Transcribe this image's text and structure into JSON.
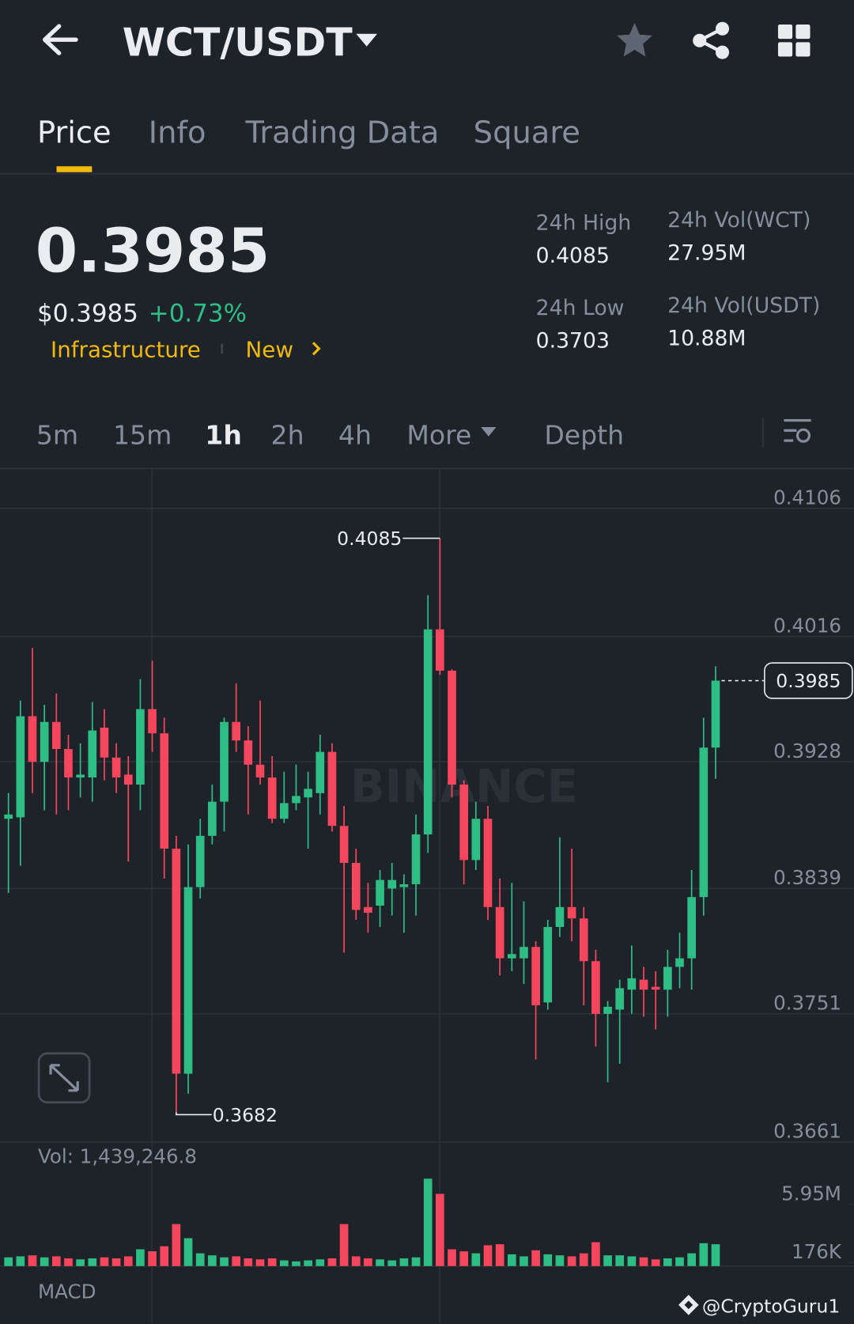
{
  "header": {
    "title": "WCT/USDT"
  },
  "tabs": [
    "Price",
    "Info",
    "Trading Data",
    "Square"
  ],
  "price": {
    "last": "0.3985",
    "usd": "$0.3985",
    "change": "+0.73%"
  },
  "tags": [
    "Infrastructure",
    "New"
  ],
  "stats": [
    {
      "label": "24h High",
      "value": "0.4085"
    },
    {
      "label": "24h Vol(WCT)",
      "value": "27.95M"
    },
    {
      "label": "24h Low",
      "value": "0.3703"
    },
    {
      "label": "24h Vol(USDT)",
      "value": "10.88M"
    }
  ],
  "intervals": [
    "5m",
    "15m",
    "1h",
    "2h",
    "4h",
    "More",
    "Depth"
  ],
  "watermark": "BINANCE",
  "footer": "@CryptoGuru1",
  "chart_data": {
    "type": "candlestick",
    "open": [
      0.3888,
      0.3889,
      0.396,
      0.3928,
      0.3956,
      0.3937,
      0.3917,
      0.3917,
      0.3952,
      0.3931,
      0.3919,
      0.3912,
      0.3965,
      0.3948,
      0.3867,
      0.3709,
      0.384,
      0.3876,
      0.39,
      0.3956,
      0.3943,
      0.3926,
      0.3917,
      0.3888,
      0.3899,
      0.3903,
      0.3906,
      0.3935,
      0.3883,
      0.3857,
      0.3826,
      0.3827,
      0.3839,
      0.384,
      0.3842,
      0.3877,
      0.4021,
      0.3992,
      0.3912,
      0.3859,
      0.3888,
      0.3826,
      0.379,
      0.379,
      0.3798,
      0.3759,
      0.3812,
      0.3826,
      0.3818,
      0.3788,
      0.3751,
      0.3754,
      0.3768,
      0.3775,
      0.377,
      0.3768,
      0.3784,
      0.379,
      0.3833,
      0.3938
    ],
    "high": [
      0.3906,
      0.3971,
      0.4008,
      0.3968,
      0.3976,
      0.3947,
      0.3941,
      0.397,
      0.3965,
      0.3941,
      0.3932,
      0.3986,
      0.3999,
      0.3959,
      0.3876,
      0.387,
      0.3888,
      0.3912,
      0.3959,
      0.3983,
      0.3953,
      0.3971,
      0.3932,
      0.3921,
      0.3926,
      0.3921,
      0.3947,
      0.3941,
      0.3897,
      0.3867,
      0.3843,
      0.3852,
      0.3857,
      0.3849,
      0.3891,
      0.4045,
      0.4085,
      0.3993,
      0.3915,
      0.39,
      0.3897,
      0.3846,
      0.3843,
      0.383,
      0.3802,
      0.3817,
      0.3875,
      0.3867,
      0.3826,
      0.3796,
      0.376,
      0.3775,
      0.3799,
      0.3784,
      0.3781,
      0.3796,
      0.3808,
      0.3852,
      0.3959,
      0.3995
    ],
    "low": [
      0.3836,
      0.3855,
      0.3906,
      0.3894,
      0.3891,
      0.3894,
      0.3903,
      0.39,
      0.3915,
      0.3906,
      0.3858,
      0.3894,
      0.3935,
      0.3846,
      0.3682,
      0.3695,
      0.3832,
      0.387,
      0.3879,
      0.3935,
      0.3891,
      0.3912,
      0.3885,
      0.3885,
      0.3894,
      0.3867,
      0.3891,
      0.3879,
      0.3794,
      0.3817,
      0.3808,
      0.3812,
      0.382,
      0.3808,
      0.382,
      0.3864,
      0.3989,
      0.3903,
      0.3842,
      0.3852,
      0.3817,
      0.3778,
      0.3781,
      0.3772,
      0.3719,
      0.3754,
      0.3805,
      0.3802,
      0.3757,
      0.3728,
      0.3703,
      0.3716,
      0.3751,
      0.3749,
      0.374,
      0.3749,
      0.3769,
      0.3768,
      0.382,
      0.3916
    ],
    "close": [
      0.3891,
      0.396,
      0.3928,
      0.3956,
      0.3937,
      0.3917,
      0.3919,
      0.395,
      0.3931,
      0.3917,
      0.3912,
      0.3965,
      0.3948,
      0.3867,
      0.3709,
      0.384,
      0.3876,
      0.39,
      0.3956,
      0.3943,
      0.3926,
      0.3917,
      0.3888,
      0.3899,
      0.3904,
      0.3909,
      0.3935,
      0.3883,
      0.3857,
      0.3824,
      0.3822,
      0.3845,
      0.3845,
      0.3842,
      0.3877,
      0.4021,
      0.3992,
      0.3912,
      0.3859,
      0.3888,
      0.3826,
      0.379,
      0.3793,
      0.3798,
      0.3757,
      0.3812,
      0.3826,
      0.3818,
      0.3788,
      0.3751,
      0.3756,
      0.3769,
      0.3776,
      0.3768,
      0.3768,
      0.3784,
      0.379,
      0.3833,
      0.3938,
      0.3985
    ],
    "volume": [
      700000,
      800000,
      900000,
      700000,
      800000,
      600000,
      500000,
      600000,
      700000,
      600000,
      800000,
      1500000,
      1300000,
      1800000,
      4000000,
      2600000,
      1100000,
      900000,
      700000,
      800000,
      600000,
      500000,
      600000,
      400000,
      300000,
      400000,
      500000,
      600000,
      4000000,
      800000,
      600000,
      500000,
      400000,
      600000,
      700000,
      8500000,
      7000000,
      1500000,
      1300000,
      1100000,
      1900000,
      2000000,
      1000000,
      800000,
      1400000,
      1000000,
      900000,
      800000,
      1100000,
      2200000,
      900000,
      900000,
      800000,
      700000,
      500000,
      600000,
      700000,
      1100000,
      2100000,
      2000000
    ],
    "ylim": [
      0.3661,
      0.4134
    ],
    "yticks": [
      0.4106,
      0.4016,
      0.3928,
      0.3839,
      0.3751,
      0.3661
    ],
    "volume_ylim": [
      0,
      9040000
    ],
    "volume_ticks": [
      {
        "value": 5950000,
        "label": "5.95M"
      },
      {
        "value": 176000,
        "label": "176K"
      }
    ],
    "volume_label": "Vol: 1,439,246.8",
    "indicator_label": "MACD",
    "max_label": {
      "value": 0.4085,
      "label": "0.4085"
    },
    "min_label": {
      "value": 0.3682,
      "label": "0.3682"
    },
    "last_price": {
      "value": 0.3985,
      "label": "0.3985"
    },
    "up_color": "#2ebd85",
    "down_color": "#f6465d",
    "grid": true
  }
}
